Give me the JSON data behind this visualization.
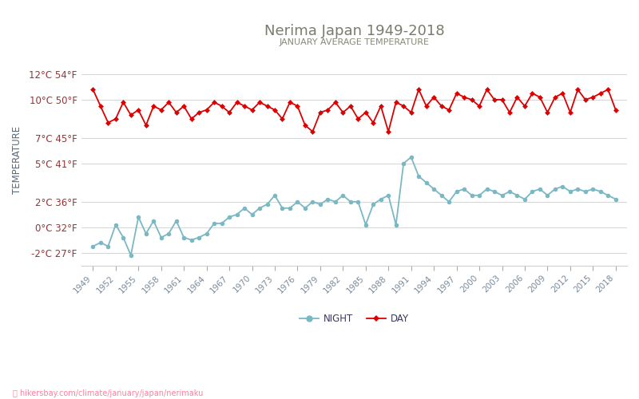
{
  "title": "Nerima Japan 1949-2018",
  "subtitle": "JANUARY AVERAGE TEMPERATURE",
  "ylabel": "TEMPERATURE",
  "watermark": "hikersbay.com/climate/january/japan/nerimaku",
  "years": [
    1949,
    1950,
    1951,
    1952,
    1953,
    1954,
    1955,
    1956,
    1957,
    1958,
    1959,
    1960,
    1961,
    1962,
    1963,
    1964,
    1965,
    1966,
    1967,
    1968,
    1969,
    1970,
    1971,
    1972,
    1973,
    1974,
    1975,
    1976,
    1977,
    1978,
    1979,
    1980,
    1981,
    1982,
    1983,
    1984,
    1985,
    1986,
    1987,
    1988,
    1989,
    1990,
    1991,
    1992,
    1993,
    1994,
    1995,
    1996,
    1997,
    1998,
    1999,
    2000,
    2001,
    2002,
    2003,
    2004,
    2005,
    2006,
    2007,
    2008,
    2009,
    2010,
    2011,
    2012,
    2013,
    2014,
    2015,
    2016,
    2017,
    2018
  ],
  "day_temps": [
    10.8,
    9.5,
    8.2,
    8.5,
    9.8,
    8.8,
    9.2,
    8.0,
    9.5,
    9.2,
    9.8,
    9.0,
    9.5,
    8.5,
    9.0,
    9.2,
    9.8,
    9.5,
    9.0,
    9.8,
    9.5,
    9.2,
    9.8,
    9.5,
    9.2,
    8.5,
    9.8,
    9.5,
    8.0,
    7.5,
    9.0,
    9.2,
    9.8,
    9.0,
    9.5,
    8.5,
    9.0,
    8.2,
    9.5,
    7.5,
    9.8,
    9.5,
    9.0,
    10.8,
    9.5,
    10.2,
    9.5,
    9.2,
    10.5,
    10.2,
    10.0,
    9.5,
    10.8,
    10.0,
    10.0,
    9.0,
    10.2,
    9.5,
    10.5,
    10.2,
    9.0,
    10.2,
    10.5,
    9.0,
    10.8,
    10.0,
    10.2,
    10.5,
    10.8,
    9.2
  ],
  "night_temps": [
    -1.5,
    -1.2,
    -1.5,
    0.2,
    -0.8,
    -2.2,
    0.8,
    -0.5,
    0.5,
    -0.8,
    -0.5,
    0.5,
    -0.8,
    -1.0,
    -0.8,
    -0.5,
    0.3,
    0.3,
    0.8,
    1.0,
    1.5,
    1.0,
    1.5,
    1.8,
    2.5,
    1.5,
    1.5,
    2.0,
    1.5,
    2.0,
    1.8,
    2.2,
    2.0,
    2.5,
    2.0,
    2.0,
    0.2,
    1.8,
    2.2,
    2.5,
    0.2,
    5.0,
    5.5,
    4.0,
    3.5,
    3.0,
    2.5,
    2.0,
    2.8,
    3.0,
    2.5,
    2.5,
    3.0,
    2.8,
    2.5,
    2.8,
    2.5,
    2.2,
    2.8,
    3.0,
    2.5,
    3.0,
    3.2,
    2.8,
    3.0,
    2.8,
    3.0,
    2.8,
    2.5,
    2.2
  ],
  "day_color": "#dd0000",
  "night_color": "#7ab8c4",
  "title_color": "#7a7a6e",
  "subtitle_color": "#888877",
  "ylabel_color": "#5a6a7a",
  "tick_label_color": "#993333",
  "xtick_color": "#7a8a9a",
  "grid_color": "#d5d5d5",
  "background_color": "#ffffff",
  "yticks_c": [
    -2,
    0,
    2,
    5,
    7,
    10,
    12
  ],
  "yticks_f": [
    27,
    32,
    36,
    41,
    45,
    50,
    54
  ],
  "xtick_years": [
    1949,
    1952,
    1955,
    1958,
    1961,
    1964,
    1967,
    1970,
    1973,
    1976,
    1979,
    1982,
    1985,
    1988,
    1991,
    1994,
    1997,
    2000,
    2003,
    2006,
    2009,
    2012,
    2015,
    2018
  ],
  "figwidth": 8.0,
  "figheight": 5.0,
  "dpi": 100
}
